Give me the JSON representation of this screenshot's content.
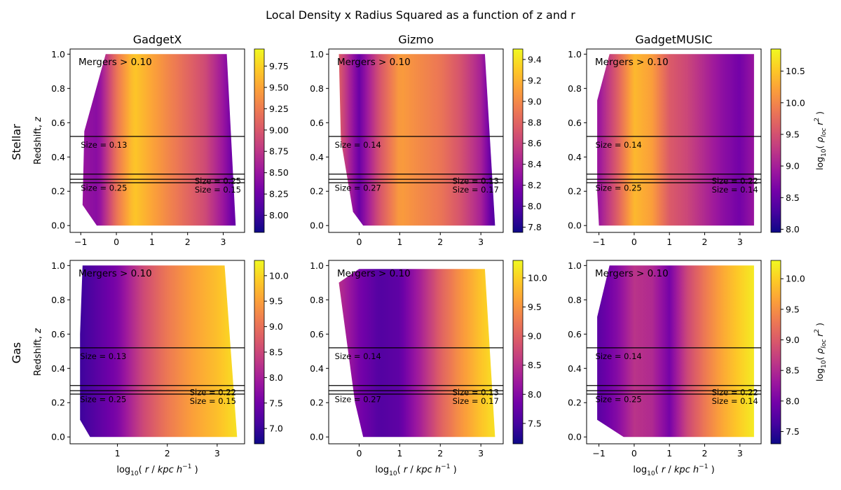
{
  "figure_title": "Local Density x Radius Squared as a function of z and r",
  "row_labels": [
    "Stellar",
    "Gas"
  ],
  "column_titles": [
    "GadgetX",
    "Gizmo",
    "GadgetMUSIC"
  ],
  "colors": {
    "plasma": [
      "#0d0887",
      "#46039f",
      "#7201a8",
      "#9c179e",
      "#bd3786",
      "#d8576b",
      "#ed7953",
      "#fb9f3a",
      "#fdca26",
      "#f0f921"
    ],
    "merger_line": "#000000",
    "size_label": "#33cc33"
  },
  "chart_data": [
    {
      "type": "heatmap",
      "row": "Stellar",
      "column": "GadgetX",
      "title": "GadgetX",
      "xlabel": "",
      "ylabel": "Redshift, z",
      "xlim": [
        -1.3,
        3.6
      ],
      "ylim": [
        -0.04,
        1.03
      ],
      "xticks": [
        -1,
        0,
        1,
        2,
        3
      ],
      "yticks": [
        0.0,
        0.2,
        0.4,
        0.6,
        0.8,
        1.0
      ],
      "annotation": "Mergers > 0.10",
      "domain_polygon": [
        [
          -0.3,
          1.0
        ],
        [
          3.1,
          1.0
        ],
        [
          3.35,
          0.0
        ],
        [
          -0.55,
          0.0
        ],
        [
          -0.95,
          0.12
        ],
        [
          -0.9,
          0.55
        ]
      ],
      "colorbar": {
        "range": [
          7.8,
          9.95
        ],
        "ticks": [
          8.0,
          8.25,
          8.5,
          8.75,
          9.0,
          9.25,
          9.5,
          9.75
        ],
        "label": ""
      },
      "profile": {
        "x": [
          -1.0,
          -0.5,
          0.0,
          0.5,
          1.0,
          1.5,
          2.0,
          2.5,
          3.0,
          3.3
        ],
        "values": [
          8.5,
          8.4,
          9.2,
          9.7,
          9.5,
          9.3,
          9.1,
          8.9,
          8.5,
          8.2
        ]
      },
      "merger_lines": [
        0.52,
        0.3,
        0.27,
        0.25
      ],
      "size_labels": [
        {
          "text": "Size = 0.13",
          "x": -1.0,
          "z": 0.47
        },
        {
          "text": "Size = 0.25",
          "x": -1.0,
          "z": 0.22
        },
        {
          "text": "Size = 0.25",
          "x": 2.2,
          "z": 0.26
        },
        {
          "text": "Size = 0.15",
          "x": 2.2,
          "z": 0.21
        }
      ]
    },
    {
      "type": "heatmap",
      "row": "Stellar",
      "column": "Gizmo",
      "title": "Gizmo",
      "xlabel": "",
      "ylabel": "",
      "xlim": [
        -0.75,
        3.55
      ],
      "ylim": [
        -0.04,
        1.03
      ],
      "xticks": [
        0,
        1,
        2,
        3
      ],
      "yticks": [
        0.0,
        0.2,
        0.4,
        0.6,
        0.8,
        1.0
      ],
      "annotation": "Mergers > 0.10",
      "domain_polygon": [
        [
          -0.5,
          1.0
        ],
        [
          3.1,
          1.0
        ],
        [
          3.35,
          0.0
        ],
        [
          0.1,
          0.0
        ],
        [
          -0.15,
          0.08
        ],
        [
          -0.45,
          0.5
        ]
      ],
      "colorbar": {
        "range": [
          7.75,
          9.5
        ],
        "ticks": [
          7.8,
          8.0,
          8.2,
          8.4,
          8.6,
          8.8,
          9.0,
          9.2,
          9.4
        ],
        "label": ""
      },
      "profile": {
        "x": [
          -0.6,
          0.0,
          0.5,
          1.0,
          1.5,
          2.0,
          2.5,
          3.0,
          3.3
        ],
        "values": [
          8.9,
          8.1,
          8.7,
          9.1,
          9.0,
          8.9,
          8.7,
          8.4,
          8.0
        ]
      },
      "merger_lines": [
        0.52,
        0.3,
        0.27,
        0.25
      ],
      "size_labels": [
        {
          "text": "Size = 0.14",
          "x": -0.6,
          "z": 0.47
        },
        {
          "text": "Size = 0.27",
          "x": -0.6,
          "z": 0.22
        },
        {
          "text": "Size = 0.13",
          "x": 2.3,
          "z": 0.26
        },
        {
          "text": "Size = 0.17",
          "x": 2.3,
          "z": 0.21
        }
      ]
    },
    {
      "type": "heatmap",
      "row": "Stellar",
      "column": "GadgetMUSIC",
      "title": "GadgetMUSIC",
      "xlabel": "",
      "ylabel": "",
      "xlim": [
        -1.35,
        3.6
      ],
      "ylim": [
        -0.04,
        1.03
      ],
      "xticks": [
        -1,
        0,
        1,
        2,
        3
      ],
      "yticks": [
        0.0,
        0.2,
        0.4,
        0.6,
        0.8,
        1.0
      ],
      "annotation": "Mergers > 0.10",
      "domain_polygon": [
        [
          -0.7,
          1.0
        ],
        [
          3.4,
          1.0
        ],
        [
          3.4,
          0.0
        ],
        [
          -1.0,
          0.0
        ],
        [
          -1.05,
          0.2
        ],
        [
          -1.05,
          0.73
        ]
      ],
      "colorbar": {
        "range": [
          7.95,
          10.85
        ],
        "ticks": [
          8.0,
          8.5,
          9.0,
          9.5,
          10.0,
          10.5
        ],
        "label": "log10( ρloc r² )"
      },
      "profile": {
        "x": [
          -1.0,
          -0.5,
          0.0,
          0.5,
          1.0,
          1.5,
          2.0,
          2.5,
          3.0,
          3.4
        ],
        "values": [
          8.9,
          9.6,
          10.4,
          10.2,
          9.6,
          9.4,
          9.1,
          8.8,
          8.6,
          8.9
        ]
      },
      "merger_lines": [
        0.52,
        0.3,
        0.27,
        0.25
      ],
      "size_labels": [
        {
          "text": "Size = 0.14",
          "x": -1.1,
          "z": 0.47
        },
        {
          "text": "Size = 0.25",
          "x": -1.1,
          "z": 0.22
        },
        {
          "text": "Size = 0.22",
          "x": 2.2,
          "z": 0.26
        },
        {
          "text": "Size = 0.14",
          "x": 2.2,
          "z": 0.21
        }
      ]
    },
    {
      "type": "heatmap",
      "row": "Gas",
      "column": "GadgetX",
      "title": "",
      "xlabel": "log10( r / kpc h^-1 )",
      "ylabel": "Redshift, z",
      "xlim": [
        0.05,
        3.55
      ],
      "ylim": [
        -0.04,
        1.03
      ],
      "xticks": [
        1,
        2,
        3
      ],
      "yticks": [
        0.0,
        0.2,
        0.4,
        0.6,
        0.8,
        1.0
      ],
      "annotation": "Mergers > 0.10",
      "domain_polygon": [
        [
          0.3,
          1.0
        ],
        [
          3.15,
          1.0
        ],
        [
          3.4,
          0.0
        ],
        [
          0.45,
          0.0
        ],
        [
          0.25,
          0.1
        ],
        [
          0.25,
          0.6
        ]
      ],
      "colorbar": {
        "range": [
          6.7,
          10.3
        ],
        "ticks": [
          7.0,
          7.5,
          8.0,
          8.5,
          9.0,
          9.5,
          10.0
        ],
        "label": ""
      },
      "profile": {
        "x": [
          0.2,
          0.5,
          1.0,
          1.5,
          2.0,
          2.5,
          3.0,
          3.4
        ],
        "values": [
          7.0,
          7.2,
          7.6,
          8.5,
          9.1,
          9.5,
          9.8,
          10.1
        ]
      },
      "merger_lines": [
        0.52,
        0.3,
        0.27,
        0.25
      ],
      "size_labels": [
        {
          "text": "Size = 0.13",
          "x": 0.25,
          "z": 0.47
        },
        {
          "text": "Size = 0.25",
          "x": 0.25,
          "z": 0.22
        },
        {
          "text": "Size = 0.22",
          "x": 2.45,
          "z": 0.26
        },
        {
          "text": "Size = 0.15",
          "x": 2.45,
          "z": 0.21
        }
      ]
    },
    {
      "type": "heatmap",
      "row": "Gas",
      "column": "Gizmo",
      "title": "",
      "xlabel": "log10( r / kpc h^-1 )",
      "ylabel": "",
      "xlim": [
        -0.75,
        3.55
      ],
      "ylim": [
        -0.04,
        1.03
      ],
      "xticks": [
        0,
        1,
        2,
        3
      ],
      "yticks": [
        0.0,
        0.2,
        0.4,
        0.6,
        0.8,
        1.0
      ],
      "annotation": "Mergers > 0.10",
      "domain_polygon": [
        [
          -0.5,
          0.9
        ],
        [
          0.0,
          0.98
        ],
        [
          3.1,
          0.98
        ],
        [
          3.35,
          0.0
        ],
        [
          0.1,
          0.0
        ],
        [
          -0.1,
          0.2
        ]
      ],
      "colorbar": {
        "range": [
          7.15,
          10.3
        ],
        "ticks": [
          7.5,
          8.0,
          8.5,
          9.0,
          9.5,
          10.0
        ],
        "label": ""
      },
      "profile": {
        "x": [
          -0.6,
          0.0,
          0.5,
          1.0,
          1.5,
          2.0,
          2.5,
          3.0,
          3.3
        ],
        "values": [
          8.6,
          7.9,
          7.6,
          7.7,
          8.3,
          9.0,
          9.5,
          9.9,
          10.1
        ]
      },
      "merger_lines": [
        0.52,
        0.3,
        0.27,
        0.25
      ],
      "size_labels": [
        {
          "text": "Size = 0.14",
          "x": -0.6,
          "z": 0.47
        },
        {
          "text": "Size = 0.27",
          "x": -0.6,
          "z": 0.22
        },
        {
          "text": "Size = 0.13",
          "x": 2.3,
          "z": 0.26
        },
        {
          "text": "Size = 0.17",
          "x": 2.3,
          "z": 0.21
        }
      ]
    },
    {
      "type": "heatmap",
      "row": "Gas",
      "column": "GadgetMUSIC",
      "title": "",
      "xlabel": "log10( r / kpc h^-1 )",
      "ylabel": "",
      "xlim": [
        -1.35,
        3.6
      ],
      "ylim": [
        -0.04,
        1.03
      ],
      "xticks": [
        -1,
        0,
        1,
        2,
        3
      ],
      "yticks": [
        0.0,
        0.2,
        0.4,
        0.6,
        0.8,
        1.0
      ],
      "annotation": "Mergers > 0.10",
      "domain_polygon": [
        [
          -0.7,
          1.0
        ],
        [
          3.4,
          1.0
        ],
        [
          3.4,
          0.0
        ],
        [
          -0.3,
          0.0
        ],
        [
          -1.05,
          0.1
        ],
        [
          -1.05,
          0.7
        ]
      ],
      "colorbar": {
        "range": [
          7.3,
          10.3
        ],
        "ticks": [
          7.5,
          8.0,
          8.5,
          9.0,
          9.5,
          10.0
        ],
        "label": "log10( ρloc r² )"
      },
      "profile": {
        "x": [
          -1.0,
          -0.5,
          0.0,
          0.5,
          1.0,
          1.5,
          2.0,
          2.5,
          3.0,
          3.4
        ],
        "values": [
          7.8,
          8.1,
          8.6,
          8.5,
          8.0,
          8.8,
          9.3,
          9.7,
          10.0,
          10.2
        ]
      },
      "merger_lines": [
        0.52,
        0.3,
        0.27,
        0.25
      ],
      "size_labels": [
        {
          "text": "Size = 0.14",
          "x": -1.1,
          "z": 0.47
        },
        {
          "text": "Size = 0.25",
          "x": -1.1,
          "z": 0.22
        },
        {
          "text": "Size = 0.22",
          "x": 2.2,
          "z": 0.26
        },
        {
          "text": "Size = 0.14",
          "x": 2.2,
          "z": 0.21
        }
      ]
    }
  ]
}
